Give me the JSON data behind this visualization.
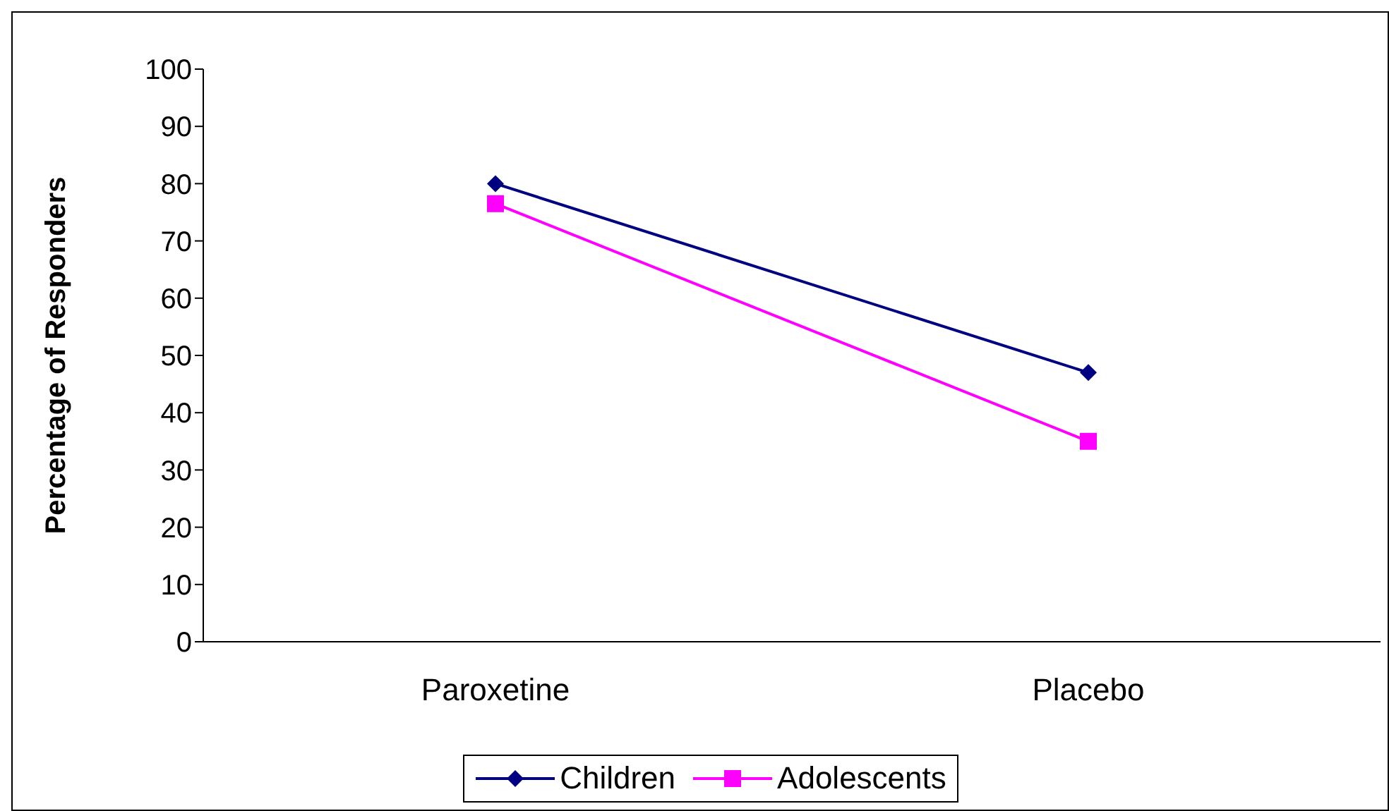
{
  "chart_data": {
    "type": "line",
    "ylabel": "Percentage of Responders",
    "categories": [
      "Paroxetine",
      "Placebo"
    ],
    "series": [
      {
        "name": "Children",
        "color": "#000080",
        "values": [
          80,
          47
        ],
        "marker": "diamond"
      },
      {
        "name": "Adolescents",
        "color": "#ff00ff",
        "values": [
          76.5,
          35
        ],
        "marker": "square"
      }
    ],
    "ylim": [
      0,
      100
    ],
    "yticks": [
      0,
      10,
      20,
      30,
      40,
      50,
      60,
      70,
      80,
      90,
      100
    ],
    "legend": "bottom"
  }
}
